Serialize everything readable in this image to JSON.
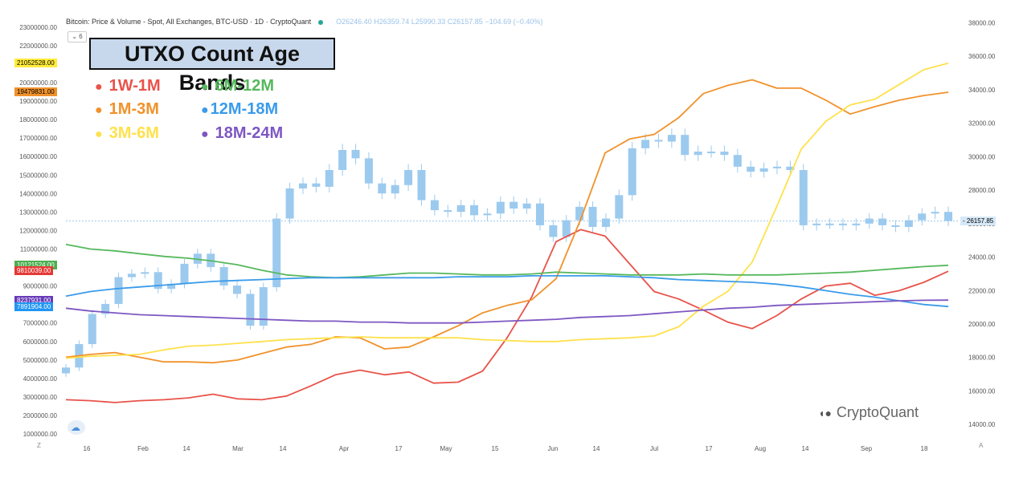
{
  "header": {
    "text": "Bitcoin: Price & Volume - Spot, All Exchanges, BTC-USD · 1D · CryptoQuant",
    "ohlc": "O26246.40 H26359.74 L25990.33 C26157.85 −104.69 (−0.40%)",
    "interval_control": "⌄ 6"
  },
  "brand": {
    "icon": "cryptoquant-logo-icon",
    "text": "CryptoQuant"
  },
  "corner_left": "Z",
  "corner_right": "A",
  "chart_data": {
    "type": "line",
    "title": "UTXO Count Age Bands",
    "x_ticks": [
      "16",
      "Feb",
      "14",
      "Mar",
      "14",
      "Apr",
      "17",
      "May",
      "15",
      "Jun",
      "14",
      "Jul",
      "17",
      "Aug",
      "14",
      "Sep",
      "18"
    ],
    "left_axis": {
      "ticks": [
        1000000,
        2000000,
        3000000,
        4000000,
        5000000,
        6000000,
        7000000,
        9000000,
        11000000,
        12000000,
        13000000,
        14000000,
        15000000,
        16000000,
        17000000,
        18000000,
        19000000,
        20000000,
        22000000,
        23000000
      ],
      "tick_labels": [
        "1000000.00",
        "2000000.00",
        "3000000.00",
        "4000000.00",
        "5000000.00",
        "6000000.00",
        "7000000.00",
        "9000000.00",
        "11000000.00",
        "12000000.00",
        "13000000.00",
        "14000000.00",
        "15000000.00",
        "16000000.00",
        "17000000.00",
        "18000000.00",
        "19000000.00",
        "20000000.00",
        "22000000.00",
        "23000000.00"
      ],
      "range": [
        700000,
        23600000
      ],
      "current_labels": [
        {
          "value": 21052528,
          "text": "21052528.00",
          "color": "#ffeb3b"
        },
        {
          "value": 19479831,
          "text": "19479831.00",
          "color": "#f0922b"
        },
        {
          "value": 10121524,
          "text": "10121524.00",
          "color": "#4caf50"
        },
        {
          "value": 9810039,
          "text": "9810039.00",
          "color": "#e53935"
        },
        {
          "value": 8237931,
          "text": "8237931.00",
          "color": "#673ab7"
        },
        {
          "value": 7891904,
          "text": "7891904.00",
          "color": "#2196f3"
        }
      ]
    },
    "right_axis": {
      "ticks": [
        14000,
        16000,
        18000,
        20000,
        22000,
        24000,
        26000,
        28000,
        30000,
        32000,
        34000,
        36000,
        38000
      ],
      "tick_labels": [
        "14000.00",
        "16000.00",
        "18000.00",
        "20000.00",
        "22000.00",
        "24000.00",
        "26000.00",
        "28000.00",
        "30000.00",
        "32000.00",
        "34000.00",
        "36000.00",
        "38000.00"
      ],
      "range": [
        13100,
        38400
      ],
      "current_label": {
        "value": 26157.85,
        "text": "26157.85"
      }
    },
    "series": [
      {
        "name": "1W-1M",
        "color": "#e8534a",
        "axis": "left",
        "values": [
          2850000,
          2800000,
          2700000,
          2800000,
          2850000,
          2950000,
          3150000,
          2900000,
          2850000,
          3050000,
          3600000,
          4200000,
          4450000,
          4200000,
          4350000,
          3750000,
          3800000,
          4400000,
          6200000,
          8400000,
          11400000,
          12050000,
          11700000,
          10200000,
          8700000,
          8300000,
          7700000,
          7050000,
          6700000,
          7400000,
          8300000,
          9000000,
          9150000,
          8500000,
          8750000,
          9200000,
          9800000
        ]
      },
      {
        "name": "1M-3M",
        "color": "#f0922b",
        "axis": "left",
        "values": [
          5150000,
          5300000,
          5400000,
          5150000,
          4900000,
          4900000,
          4850000,
          5000000,
          5350000,
          5700000,
          5850000,
          6250000,
          6200000,
          5600000,
          5700000,
          6250000,
          6850000,
          7550000,
          7950000,
          8250000,
          9400000,
          12600000,
          16200000,
          16950000,
          17200000,
          18100000,
          19400000,
          19850000,
          20150000,
          19700000,
          19700000,
          19050000,
          18300000,
          18700000,
          19050000,
          19300000,
          19480000
        ]
      },
      {
        "name": "3M-6M",
        "color": "#ffe14d",
        "axis": "left",
        "values": [
          5100000,
          5200000,
          5250000,
          5300000,
          5550000,
          5750000,
          5800000,
          5900000,
          6000000,
          6100000,
          6150000,
          6200000,
          6250000,
          6200000,
          6200000,
          6200000,
          6200000,
          6100000,
          6050000,
          6000000,
          6000000,
          6100000,
          6150000,
          6200000,
          6300000,
          6800000,
          7900000,
          8700000,
          10300000,
          13300000,
          16400000,
          17900000,
          18800000,
          19100000,
          19900000,
          20700000,
          21050000
        ]
      },
      {
        "name": "6M-12M",
        "color": "#56b85c",
        "axis": "left",
        "values": [
          11250000,
          11000000,
          10900000,
          10750000,
          10600000,
          10500000,
          10350000,
          10150000,
          9850000,
          9600000,
          9500000,
          9450000,
          9500000,
          9600000,
          9700000,
          9700000,
          9650000,
          9600000,
          9600000,
          9650000,
          9750000,
          9700000,
          9650000,
          9600000,
          9600000,
          9600000,
          9650000,
          9600000,
          9600000,
          9600000,
          9650000,
          9700000,
          9750000,
          9850000,
          9950000,
          10050000,
          10120000
        ]
      },
      {
        "name": "12M-18M",
        "color": "#3a9bea",
        "axis": "left",
        "values": [
          8450000,
          8700000,
          8850000,
          8950000,
          9050000,
          9150000,
          9250000,
          9300000,
          9350000,
          9400000,
          9450000,
          9450000,
          9450000,
          9450000,
          9450000,
          9450000,
          9500000,
          9500000,
          9500000,
          9550000,
          9550000,
          9550000,
          9550000,
          9500000,
          9450000,
          9350000,
          9300000,
          9250000,
          9200000,
          9100000,
          8950000,
          8750000,
          8550000,
          8400000,
          8200000,
          8000000,
          7890000
        ]
      },
      {
        "name": "18M-24M",
        "color": "#7e57c2",
        "axis": "left",
        "values": [
          7800000,
          7650000,
          7550000,
          7450000,
          7400000,
          7350000,
          7300000,
          7250000,
          7200000,
          7150000,
          7100000,
          7100000,
          7050000,
          7050000,
          7000000,
          7000000,
          7000000,
          7050000,
          7100000,
          7150000,
          7200000,
          7300000,
          7350000,
          7400000,
          7500000,
          7600000,
          7700000,
          7800000,
          7850000,
          7950000,
          8000000,
          8050000,
          8100000,
          8150000,
          8200000,
          8230000,
          8240000
        ]
      },
      {
        "name": "BTC-USD",
        "color": "#9ccaee",
        "axis": "right",
        "kind": "candles",
        "values": [
          17400,
          18800,
          20600,
          21200,
          22800,
          23000,
          23100,
          22100,
          22400,
          23600,
          24200,
          23400,
          22300,
          21800,
          19900,
          22200,
          26300,
          28100,
          28400,
          28200,
          29200,
          30400,
          29900,
          28400,
          27800,
          28300,
          29200,
          27400,
          26800,
          26700,
          27100,
          26500,
          26600,
          27300,
          26900,
          27200,
          25900,
          25200,
          26200,
          27000,
          25800,
          26300,
          27700,
          30500,
          31000,
          30900,
          31300,
          30100,
          30300,
          30300,
          30100,
          29400,
          29100,
          29300,
          29400,
          29200,
          25900,
          26000,
          26000,
          25900,
          26000,
          26300,
          25900,
          25800,
          26200,
          26600,
          26700,
          26158
        ]
      }
    ]
  }
}
